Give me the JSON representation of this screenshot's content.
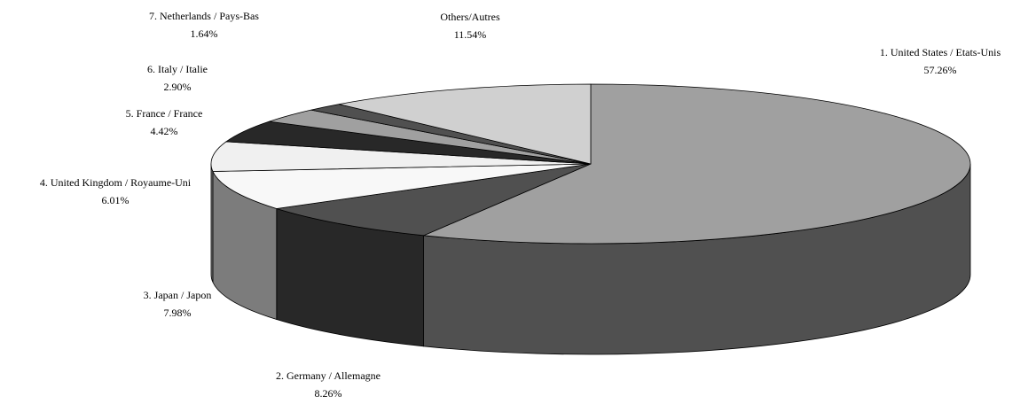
{
  "chart_data": {
    "type": "pie3d",
    "categories": [
      "1. United States / Etats-Unis",
      "2. Germany / Allemagne",
      "3. Japan / Japon",
      "4. United Kingdom / Royaume-Uni",
      "5. France / France",
      "6. Italy / Italie",
      "7. Netherlands / Pays-Bas",
      "Others/Autres"
    ],
    "values": [
      57.26,
      8.26,
      7.98,
      6.01,
      4.42,
      2.9,
      1.64,
      11.54
    ],
    "value_labels": [
      "57.26%",
      "8.26%",
      "7.98%",
      "6.01%",
      "4.42%",
      "2.90%",
      "1.64%",
      "11.54%"
    ],
    "colors": [
      "#a0a0a0",
      "#505050",
      "#f8f8f8",
      "#f0f0f0",
      "#282828",
      "#a0a0a0",
      "#505050",
      "#d0d0d0"
    ]
  }
}
